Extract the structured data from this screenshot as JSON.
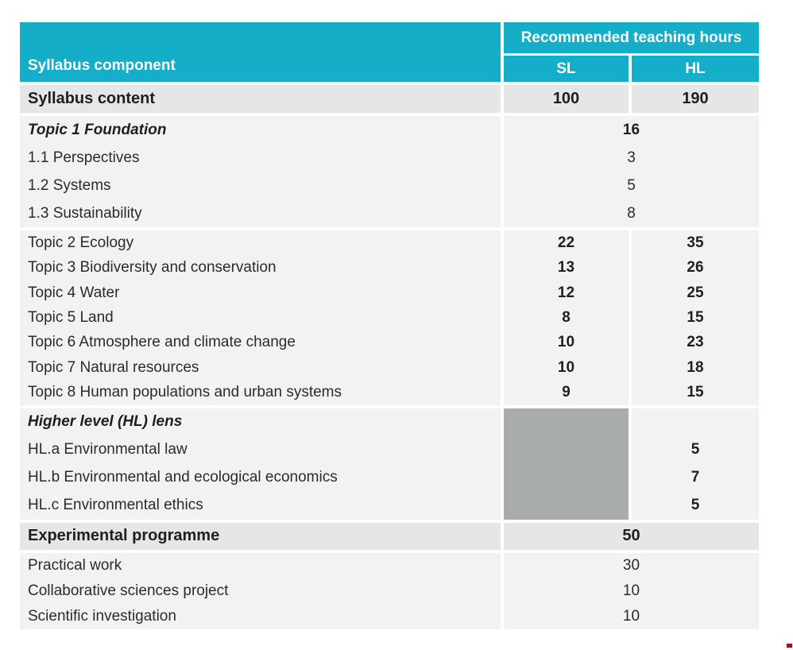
{
  "colors": {
    "teal": "#14aec8",
    "row_gray": "#e5e6e6",
    "section_gray": "#f2f2f2",
    "na_gray": "#a9acad",
    "artifact_red": "#9e1313"
  },
  "header": {
    "syllabus_component": "Syllabus component",
    "recommended_teaching_hours": "Recommended teaching hours",
    "sl": "SL",
    "hl": "HL"
  },
  "syllabus_content_row": {
    "label": "Syllabus content",
    "sl": "100",
    "hl": "190"
  },
  "topic1_section": {
    "rows": [
      {
        "label": "Topic 1 Foundation",
        "hours": "16"
      },
      {
        "label": "1.1 Perspectives",
        "hours": "3"
      },
      {
        "label": "1.2 Systems",
        "hours": "5"
      },
      {
        "label": "1.3 Sustainability",
        "hours": "8"
      }
    ]
  },
  "topics_section": {
    "rows": [
      {
        "label": "Topic 2 Ecology",
        "sl": "22",
        "hl": "35"
      },
      {
        "label": "Topic 3 Biodiversity and conservation",
        "sl": "13",
        "hl": "26"
      },
      {
        "label": "Topic 4 Water",
        "sl": "12",
        "hl": "25"
      },
      {
        "label": "Topic 5 Land",
        "sl": "8",
        "hl": "15"
      },
      {
        "label": "Topic 6 Atmosphere and climate change",
        "sl": "10",
        "hl": "23"
      },
      {
        "label": "Topic 7 Natural resources",
        "sl": "10",
        "hl": "18"
      },
      {
        "label": "Topic 8 Human populations and urban systems",
        "sl": "9",
        "hl": "15"
      }
    ]
  },
  "hl_lens_section": {
    "rows": [
      {
        "label": "Higher level (HL) lens",
        "hl": ""
      },
      {
        "label": "HL.a Environmental law",
        "hl": "5"
      },
      {
        "label": "HL.b Environmental and ecological economics",
        "hl": "7"
      },
      {
        "label": "HL.c Environmental ethics",
        "hl": "5"
      }
    ]
  },
  "experimental_row": {
    "label": "Experimental programme",
    "hours": "50"
  },
  "experimental_section": {
    "rows": [
      {
        "label": "Practical work",
        "hours": "30"
      },
      {
        "label": "Collaborative sciences project",
        "hours": "10"
      },
      {
        "label": "Scientific investigation",
        "hours": "10"
      }
    ]
  }
}
